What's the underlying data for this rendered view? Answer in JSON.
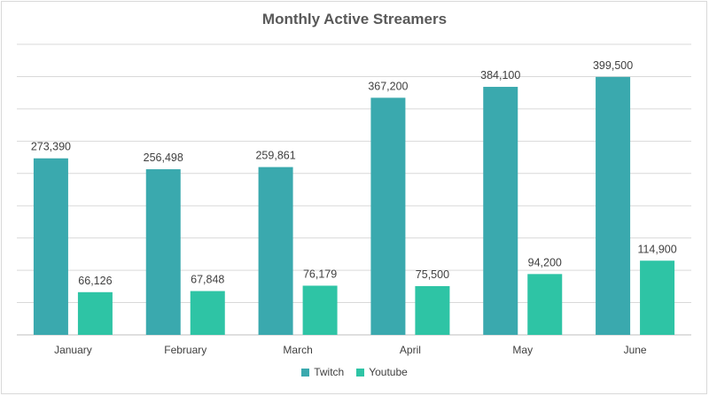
{
  "chart_data": {
    "type": "bar",
    "title": "Monthly Active Streamers",
    "xlabel": "",
    "ylabel": "",
    "ylim": [
      0,
      450000
    ],
    "grid": true,
    "legend_position": "bottom",
    "categories": [
      "January",
      "February",
      "March",
      "April",
      "May",
      "June"
    ],
    "series": [
      {
        "name": "Twitch",
        "color": "#3aa9ae",
        "values": [
          273390,
          256498,
          259861,
          367200,
          384100,
          399500
        ],
        "labels": [
          "273,390",
          "256,498",
          "259,861",
          "367,200",
          "384,100",
          "399,500"
        ]
      },
      {
        "name": "Youtube",
        "color": "#2ec4a5",
        "values": [
          66126,
          67848,
          76179,
          75500,
          94200,
          114900
        ],
        "labels": [
          "66,126",
          "67,848",
          "76,179",
          "75,500",
          "94,200",
          "114,900"
        ]
      }
    ]
  }
}
